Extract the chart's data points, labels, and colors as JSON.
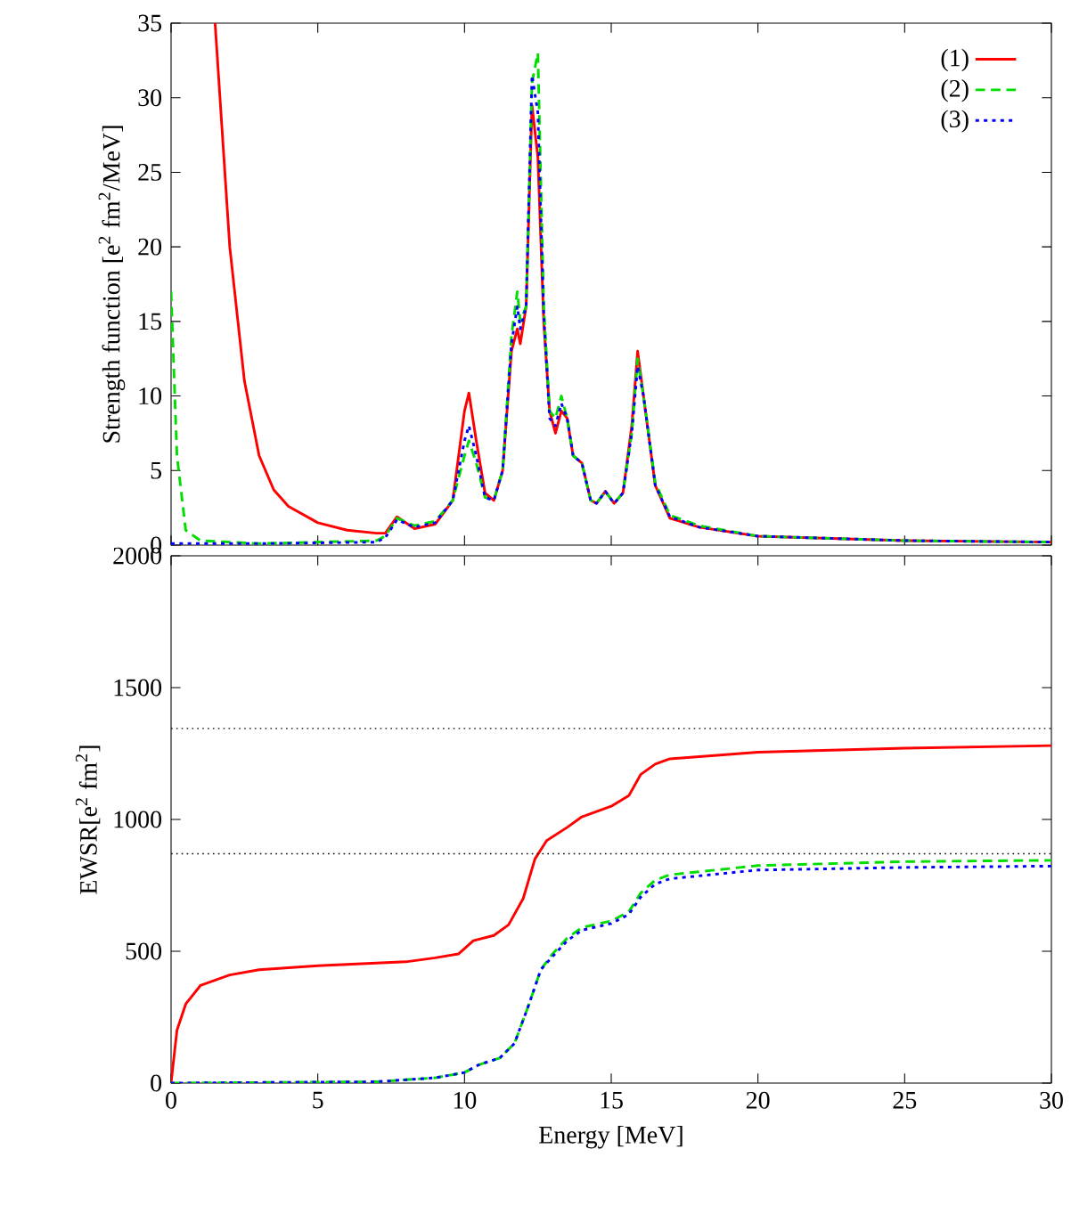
{
  "chart_data": [
    {
      "type": "line",
      "ylabel": "Strength function [e$^{2}$ fm$^{2}$/MeV]",
      "xlim": [
        0,
        30
      ],
      "ylim": [
        0,
        35
      ],
      "xticks": [
        {
          "value": 0,
          "label": null
        },
        {
          "value": 5,
          "label": null
        },
        {
          "value": 10,
          "label": null
        },
        {
          "value": 15,
          "label": null
        },
        {
          "value": 20,
          "label": null
        },
        {
          "value": 25,
          "label": null
        },
        {
          "value": 30,
          "label": null
        }
      ],
      "yticks": [
        0,
        5,
        10,
        15,
        20,
        25,
        30,
        35
      ],
      "tick_labels": "y",
      "legend": "top right",
      "grid": false,
      "series": [
        {
          "name": "(1)",
          "color": "#ff0000",
          "line_style": "solid",
          "x": [
            1.5,
            2,
            2.5,
            3,
            3.5,
            4,
            5,
            6,
            7,
            7.3,
            7.7,
            8.3,
            9,
            9.6,
            10,
            10.15,
            10.4,
            10.7,
            11,
            11.3,
            11.6,
            11.8,
            11.9,
            12.1,
            12.3,
            12.5,
            12.7,
            12.9,
            13.1,
            13.3,
            13.5,
            13.7,
            14,
            14.3,
            14.5,
            14.8,
            15.1,
            15.4,
            15.7,
            15.9,
            16.1,
            16.5,
            17,
            18,
            20,
            25,
            30
          ],
          "values": [
            35,
            20,
            11,
            6,
            3.7,
            2.6,
            1.5,
            1,
            0.8,
            0.8,
            1.9,
            1.1,
            1.4,
            3,
            9,
            10.2,
            7,
            3.5,
            3,
            5,
            13,
            14.5,
            13.5,
            16,
            29.5,
            26,
            15,
            9,
            7.5,
            9,
            8.5,
            6,
            5.5,
            3,
            2.8,
            3.6,
            2.8,
            3.5,
            8,
            13,
            10,
            4,
            1.8,
            1.2,
            0.6,
            0.3,
            0.2
          ]
        },
        {
          "name": "(2)",
          "color": "#00dd00",
          "line_style": "dashed",
          "x": [
            0,
            0.2,
            0.5,
            1,
            3,
            7,
            7.3,
            7.7,
            8.3,
            9,
            9.6,
            10,
            10.15,
            10.4,
            10.7,
            11,
            11.3,
            11.6,
            11.8,
            11.9,
            12.1,
            12.3,
            12.5,
            12.7,
            12.9,
            13.1,
            13.3,
            13.5,
            13.7,
            14,
            14.3,
            14.5,
            14.8,
            15.1,
            15.4,
            15.7,
            15.9,
            16.1,
            16.5,
            17,
            18,
            20,
            25,
            30
          ],
          "values": [
            17,
            6,
            1,
            0.3,
            0.1,
            0.3,
            0.6,
            1.8,
            1.3,
            1.6,
            3,
            6,
            7,
            5.5,
            3.2,
            3,
            5,
            14,
            17,
            15,
            16,
            31,
            33,
            16,
            9,
            8.5,
            10,
            8.5,
            6,
            5.5,
            3,
            2.8,
            3.6,
            2.8,
            3.5,
            7.5,
            12.5,
            10,
            4.2,
            2,
            1.3,
            0.6,
            0.3,
            0.2
          ]
        },
        {
          "name": "(3)",
          "color": "#0000ff",
          "line_style": "dotted",
          "x": [
            0,
            1,
            3,
            7,
            7.3,
            7.7,
            8.3,
            9,
            9.6,
            10,
            10.15,
            10.4,
            10.7,
            11,
            11.3,
            11.6,
            11.8,
            11.9,
            12.1,
            12.3,
            12.5,
            12.7,
            12.9,
            13.1,
            13.3,
            13.5,
            13.7,
            14,
            14.3,
            14.5,
            14.8,
            15.1,
            15.4,
            15.7,
            15.9,
            16.1,
            16.5,
            17,
            18,
            20,
            25,
            30
          ],
          "values": [
            0.1,
            0.1,
            0.1,
            0.2,
            0.5,
            1.7,
            1.2,
            1.5,
            3,
            7,
            8,
            6,
            3.2,
            3,
            5,
            13.5,
            16,
            14.5,
            16,
            31.5,
            29,
            15.5,
            8.5,
            8,
            9.5,
            8.5,
            6,
            5.5,
            3,
            2.8,
            3.6,
            2.8,
            3.5,
            7.5,
            12,
            10,
            4,
            1.9,
            1.2,
            0.6,
            0.3,
            0.2
          ]
        }
      ]
    },
    {
      "type": "line",
      "xlabel": "Energy [MeV]",
      "ylabel": "EWSR[e$^{2}$ fm$^{2}$]",
      "xlim": [
        0,
        30
      ],
      "ylim": [
        0,
        2000
      ],
      "xticks": [
        0,
        5,
        10,
        15,
        20,
        25,
        30
      ],
      "yticks": [
        0,
        500,
        1000,
        1500,
        2000
      ],
      "legend": false,
      "grid": false,
      "ref_lines": [
        {
          "axis": "y",
          "value": 1345,
          "color": "#000000",
          "line_style": "dotted"
        },
        {
          "axis": "y",
          "value": 870,
          "color": "#000000",
          "line_style": "dotted"
        }
      ],
      "series": [
        {
          "color": "#ff0000",
          "line_style": "solid",
          "x": [
            0,
            0.2,
            0.5,
            1,
            2,
            3,
            5,
            7,
            8,
            9,
            9.8,
            10.3,
            11,
            11.5,
            12,
            12.4,
            12.8,
            13.5,
            14,
            15,
            15.6,
            16,
            16.5,
            17,
            20,
            25,
            30
          ],
          "values": [
            0,
            200,
            300,
            370,
            410,
            430,
            445,
            455,
            460,
            475,
            490,
            540,
            560,
            600,
            700,
            850,
            920,
            970,
            1010,
            1050,
            1090,
            1170,
            1210,
            1230,
            1255,
            1270,
            1280
          ]
        },
        {
          "color": "#00dd00",
          "line_style": "dashed",
          "x": [
            0,
            7,
            9,
            10,
            10.5,
            11.2,
            11.7,
            12.2,
            12.6,
            13,
            13.5,
            14,
            15,
            15.6,
            16,
            16.5,
            17,
            20,
            25,
            30
          ],
          "values": [
            0,
            5,
            20,
            40,
            70,
            95,
            150,
            300,
            430,
            490,
            550,
            590,
            615,
            650,
            720,
            770,
            790,
            825,
            840,
            845
          ]
        },
        {
          "color": "#0000ff",
          "line_style": "dotted",
          "x": [
            0,
            7,
            9,
            10,
            10.5,
            11.2,
            11.7,
            12.2,
            12.6,
            13,
            13.5,
            14,
            15,
            15.6,
            16,
            16.5,
            17,
            20,
            25,
            30
          ],
          "values": [
            0,
            5,
            20,
            40,
            70,
            95,
            150,
            300,
            430,
            480,
            540,
            580,
            605,
            640,
            705,
            755,
            775,
            808,
            818,
            823
          ]
        }
      ]
    }
  ]
}
